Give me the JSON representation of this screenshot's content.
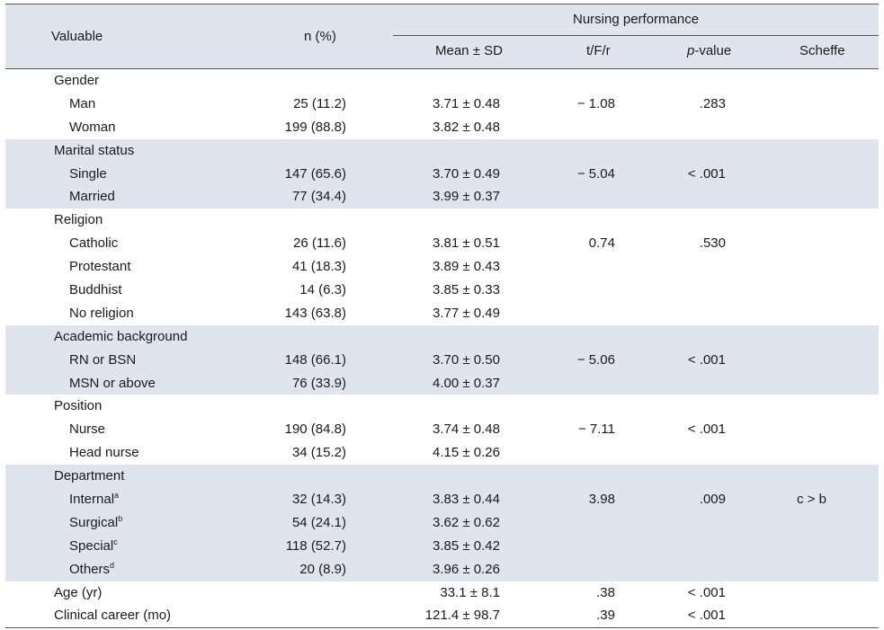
{
  "header": {
    "variable": "Valuable",
    "n_pct": "n (%)",
    "group": "Nursing performance",
    "mean_sd": "Mean ± SD",
    "tfr": "t/F/r",
    "p_italic": "p",
    "p_rest": "-value",
    "scheffe": "Scheffe"
  },
  "rows": [
    {
      "label": "Gender",
      "sub": false,
      "shaded": false
    },
    {
      "label": "Man",
      "sub": true,
      "n": "25 (11.2)",
      "mean": "3.71 ± 0.48",
      "t": "− 1.08",
      "p": ".283",
      "shaded": false
    },
    {
      "label": "Woman",
      "sub": true,
      "n": "199 (88.8)",
      "mean": "3.82 ± 0.48",
      "shaded": false
    },
    {
      "label": "Marital status",
      "sub": false,
      "shaded": true
    },
    {
      "label": "Single",
      "sub": true,
      "n": "147 (65.6)",
      "mean": "3.70 ± 0.49",
      "t": "− 5.04",
      "p": "< .001",
      "shaded": true
    },
    {
      "label": "Married",
      "sub": true,
      "n": "77 (34.4)",
      "mean": "3.99 ± 0.37",
      "shaded": true
    },
    {
      "label": "Religion",
      "sub": false,
      "shaded": false
    },
    {
      "label": "Catholic",
      "sub": true,
      "n": "26 (11.6)",
      "mean": "3.81 ± 0.51",
      "t": "0.74",
      "p": ".530",
      "shaded": false
    },
    {
      "label": "Protestant",
      "sub": true,
      "n": "41 (18.3)",
      "mean": "3.89 ± 0.43",
      "shaded": false
    },
    {
      "label": "Buddhist",
      "sub": true,
      "n": "14 (6.3)",
      "mean": "3.85 ± 0.33",
      "shaded": false
    },
    {
      "label": "No religion",
      "sub": true,
      "n": "143 (63.8)",
      "mean": "3.77 ± 0.49",
      "shaded": false
    },
    {
      "label": "Academic background",
      "sub": false,
      "shaded": true
    },
    {
      "label": "RN or BSN",
      "sub": true,
      "n": "148 (66.1)",
      "mean": "3.70 ± 0.50",
      "t": "− 5.06",
      "p": "< .001",
      "shaded": true
    },
    {
      "label": "MSN or above",
      "sub": true,
      "n": "76 (33.9)",
      "mean": "4.00 ± 0.37",
      "shaded": true
    },
    {
      "label": "Position",
      "sub": false,
      "shaded": false
    },
    {
      "label": "Nurse",
      "sub": true,
      "n": "190 (84.8)",
      "mean": "3.74 ± 0.48",
      "t": "− 7.11",
      "p": "< .001",
      "shaded": false
    },
    {
      "label": "Head nurse",
      "sub": true,
      "n": "34 (15.2)",
      "mean": "4.15 ± 0.26",
      "shaded": false
    },
    {
      "label": "Department",
      "sub": false,
      "shaded": true
    },
    {
      "label": "Internal",
      "sup": "a",
      "sub": true,
      "n": "32 (14.3)",
      "mean": "3.83 ± 0.44",
      "t": "3.98",
      "p": ".009",
      "scheffe": "c > b",
      "shaded": true
    },
    {
      "label": "Surgical",
      "sup": "b",
      "sub": true,
      "n": "54 (24.1)",
      "mean": "3.62 ± 0.62",
      "shaded": true
    },
    {
      "label": "Special",
      "sup": "c",
      "sub": true,
      "n": "118 (52.7)",
      "mean": "3.85 ± 0.42",
      "shaded": true
    },
    {
      "label": "Others",
      "sup": "d",
      "sub": true,
      "n": "20 (8.9)",
      "mean": "3.96 ± 0.26",
      "shaded": true
    },
    {
      "label": "Age (yr)",
      "sub": false,
      "mean": "33.1 ± 8.1",
      "t": ".38",
      "p": "< .001",
      "shaded": false
    },
    {
      "label": "Clinical career (mo)",
      "sub": false,
      "mean": "121.4 ± 98.7",
      "t": ".39",
      "p": "< .001",
      "shaded": false
    }
  ]
}
